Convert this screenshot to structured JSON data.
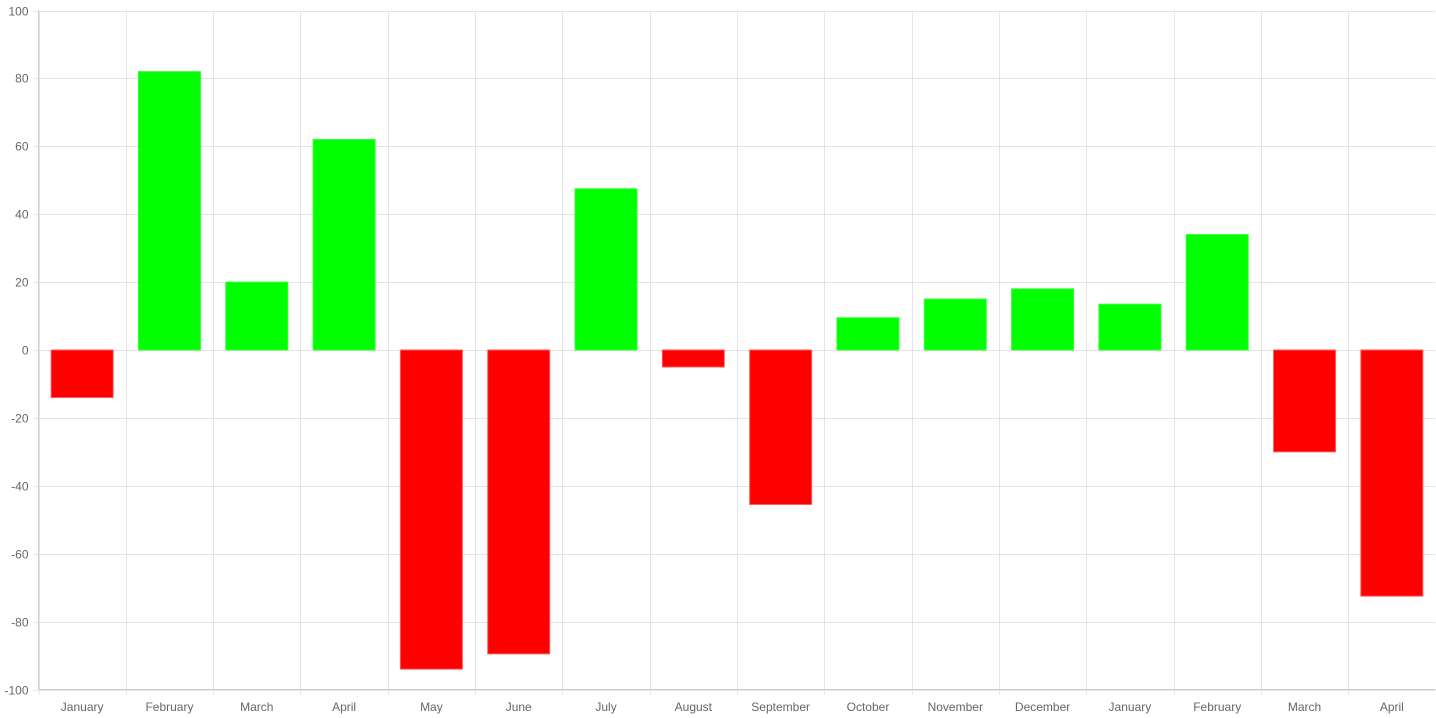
{
  "chart_data": {
    "type": "bar",
    "title": "",
    "xlabel": "",
    "ylabel": "",
    "categories": [
      "January",
      "February",
      "March",
      "April",
      "May",
      "June",
      "July",
      "August",
      "September",
      "October",
      "November",
      "December",
      "January",
      "February",
      "March",
      "April"
    ],
    "values": [
      -14,
      82,
      20,
      62,
      -94,
      -89.5,
      47.5,
      -5,
      -45.5,
      9.5,
      15,
      18,
      13.5,
      34,
      -30,
      -72.5
    ],
    "ylim": [
      -100,
      100
    ],
    "yticks": [
      100,
      80,
      60,
      40,
      20,
      0,
      -20,
      -40,
      -60,
      -80,
      -100
    ],
    "grid": true,
    "legend": "none",
    "colors": {
      "positive_fill": "#00ff00",
      "positive_border": "#33ff33",
      "negative_fill": "#ff0000",
      "negative_border": "#ff5a5a",
      "grid": "#e5e5e5",
      "axis": "#cccccc",
      "tick_text": "#666666"
    }
  }
}
